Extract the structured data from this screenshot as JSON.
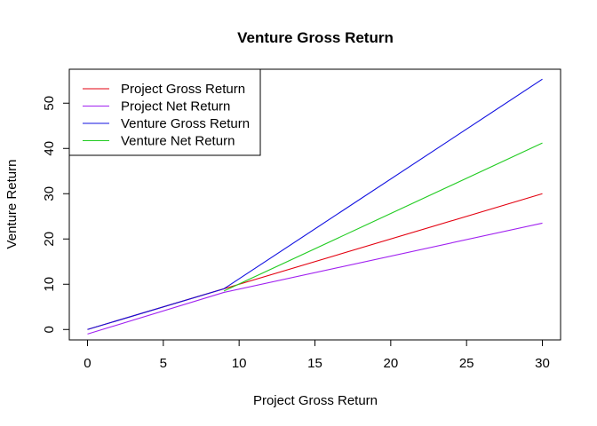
{
  "chart_data": {
    "type": "line",
    "title": "Venture Gross Return",
    "xlabel": "Project Gross Return",
    "ylabel": "Venture Return",
    "xlim": [
      -1.2,
      31.2
    ],
    "ylim": [
      -2.3,
      57.5
    ],
    "xticks": [
      0,
      5,
      10,
      15,
      20,
      25,
      30
    ],
    "yticks": [
      0,
      10,
      20,
      30,
      40,
      50
    ],
    "grid": false,
    "legend_position": "top-left",
    "series": [
      {
        "name": "Project Gross Return",
        "color": "#e3000f",
        "x": [
          0,
          30
        ],
        "y": [
          0,
          30
        ]
      },
      {
        "name": "Project Net Return",
        "color": "#a020f0",
        "x": [
          0,
          9,
          30
        ],
        "y": [
          -1.0,
          8.2,
          23.5
        ]
      },
      {
        "name": "Venture Gross Return",
        "color": "#1010e0",
        "x": [
          0,
          9,
          30
        ],
        "y": [
          0,
          9.0,
          55.3
        ]
      },
      {
        "name": "Venture Net Return",
        "color": "#22cc22",
        "x": [
          9,
          30
        ],
        "y": [
          8.5,
          41.2
        ]
      }
    ]
  }
}
